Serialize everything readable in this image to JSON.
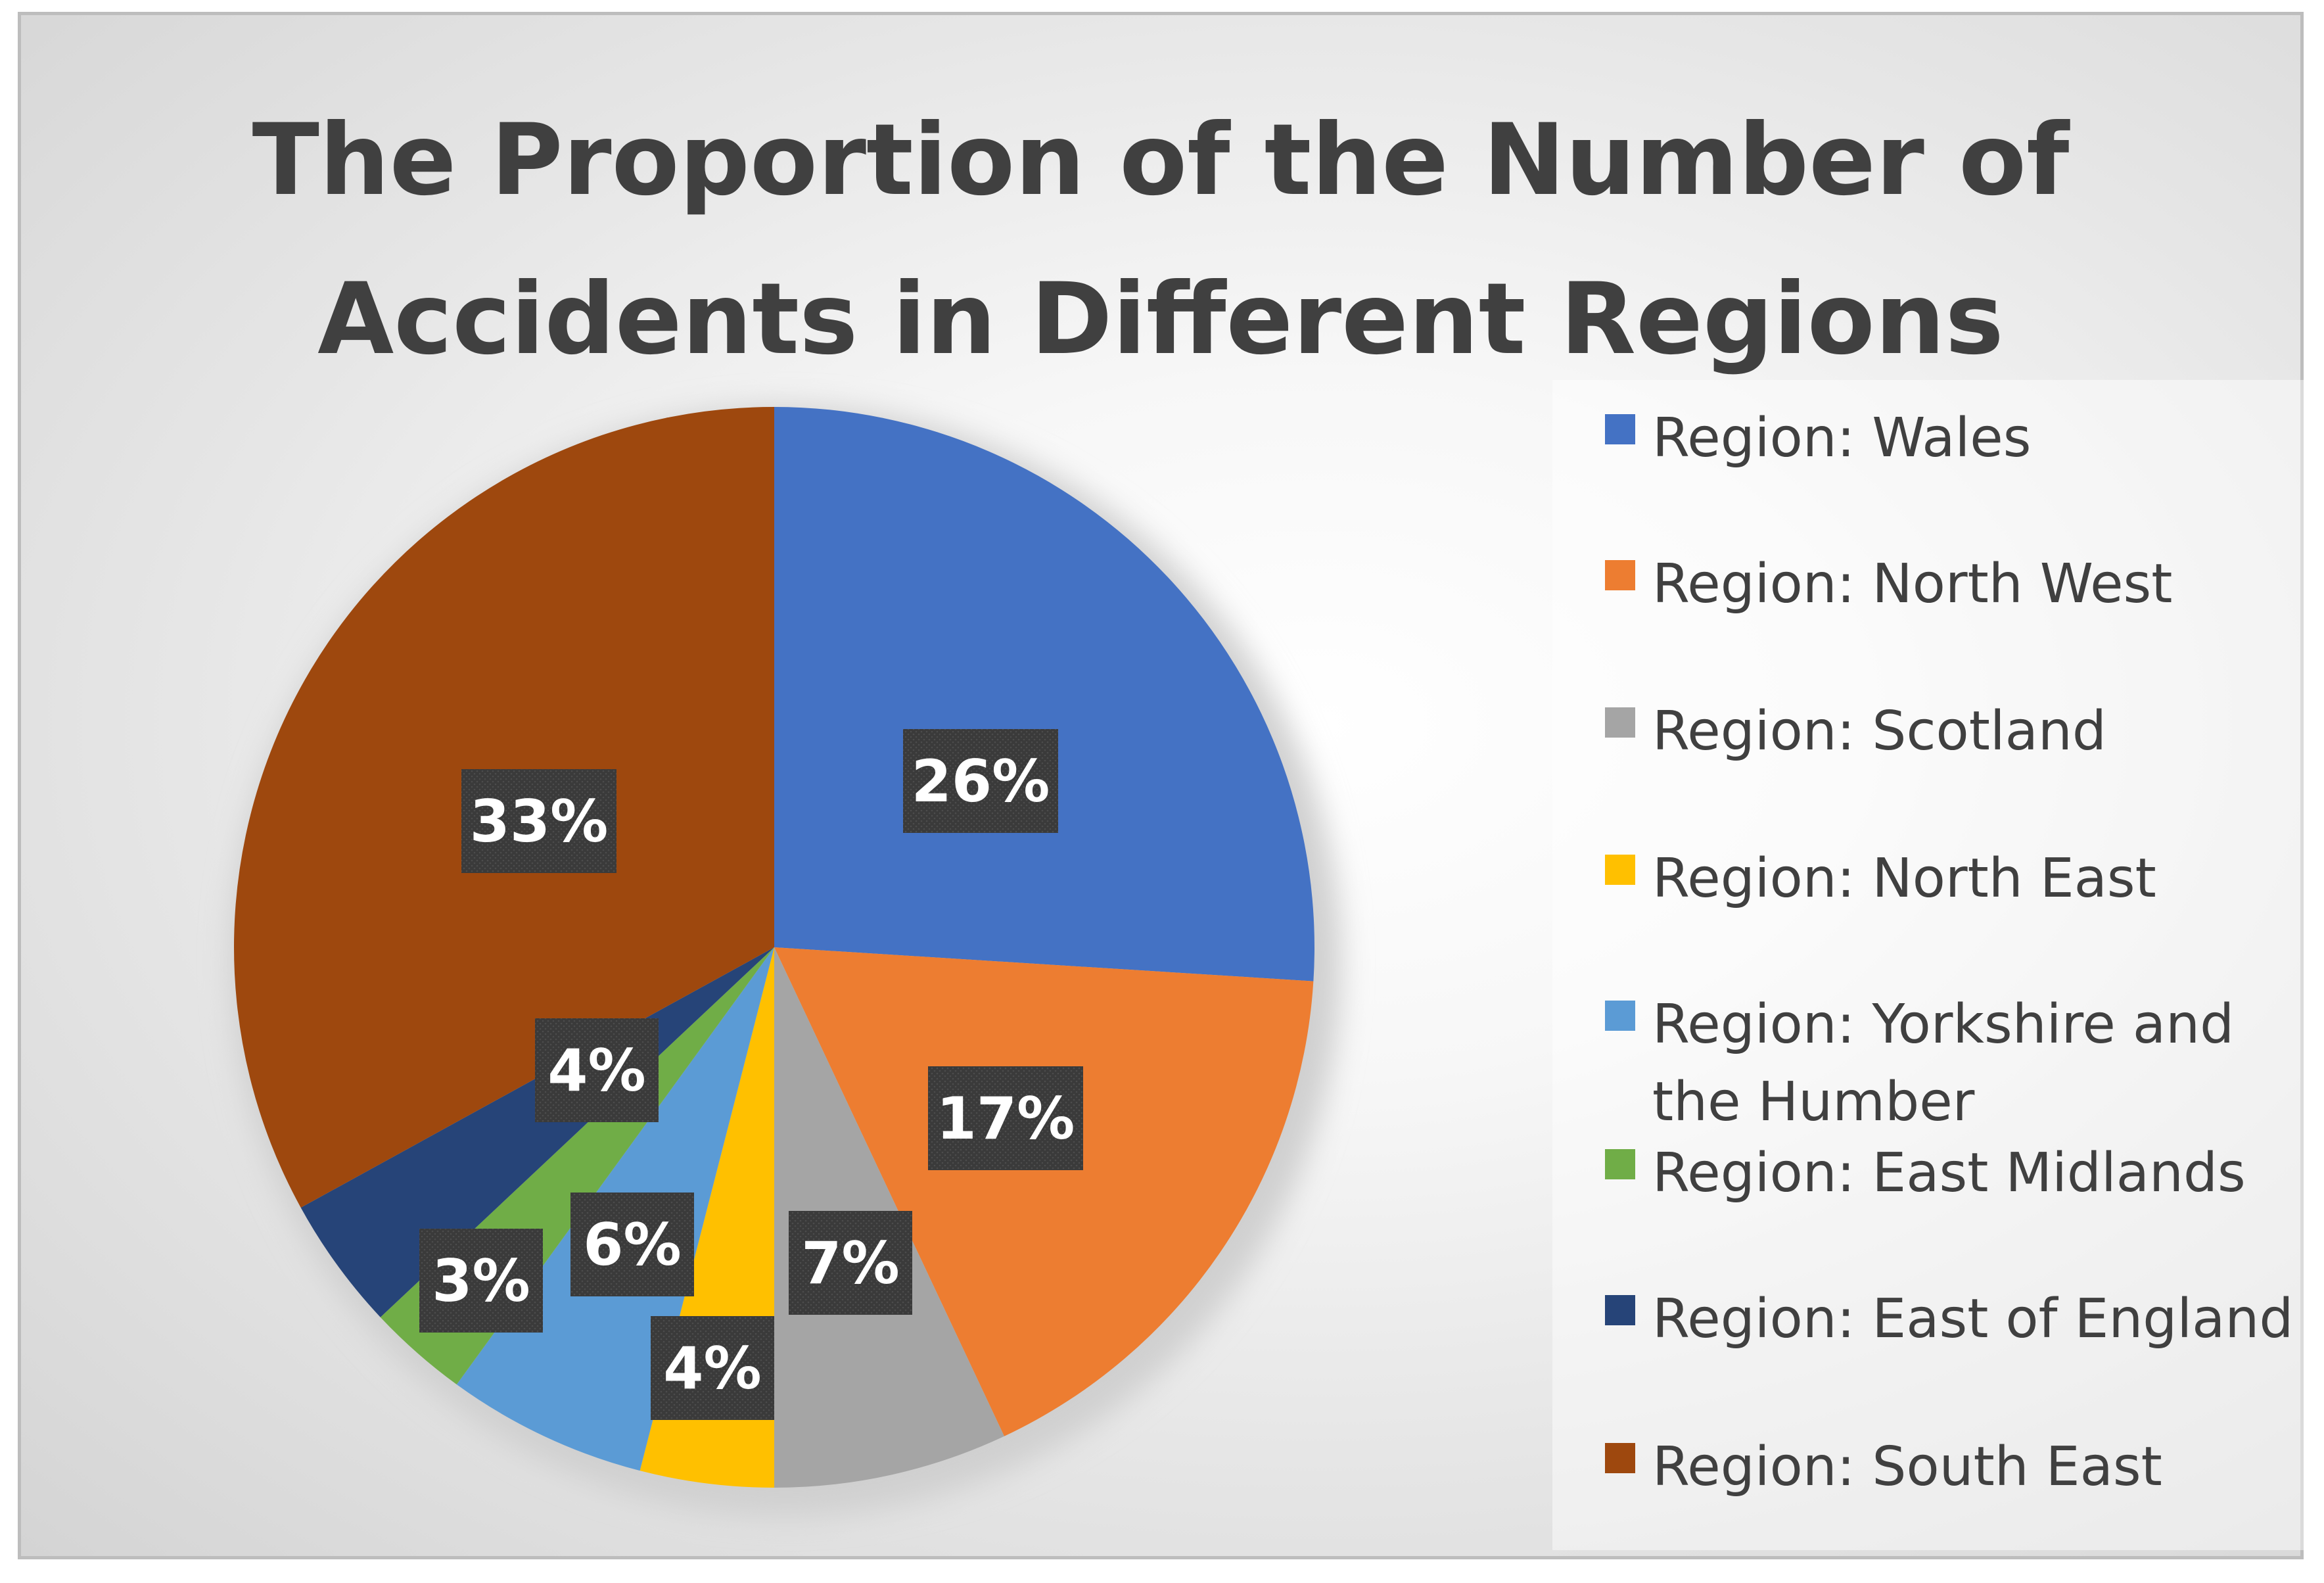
{
  "chart_data": {
    "type": "pie",
    "title": "The Proportion of the Number of\nAccidents in Different Regions",
    "categories": [
      "Region: Wales",
      "Region: North West",
      "Region: Scotland",
      "Region: North East",
      "Region: Yorkshire and the Humber",
      "Region: East Midlands",
      "Region: East of England",
      "Region: South East"
    ],
    "values": [
      26,
      17,
      7,
      4,
      6,
      3,
      4,
      33
    ],
    "labels": [
      "26%",
      "17%",
      "7%",
      "4%",
      "6%",
      "3%",
      "4%",
      "33%"
    ],
    "unit": "%",
    "colors": [
      "#4472C4",
      "#ED7D31",
      "#A5A5A5",
      "#FFC000",
      "#5B9BD5",
      "#70AD47",
      "#264478",
      "#9E480E"
    ],
    "legend_position": "right",
    "start_angle": "12 o'clock, clockwise"
  }
}
